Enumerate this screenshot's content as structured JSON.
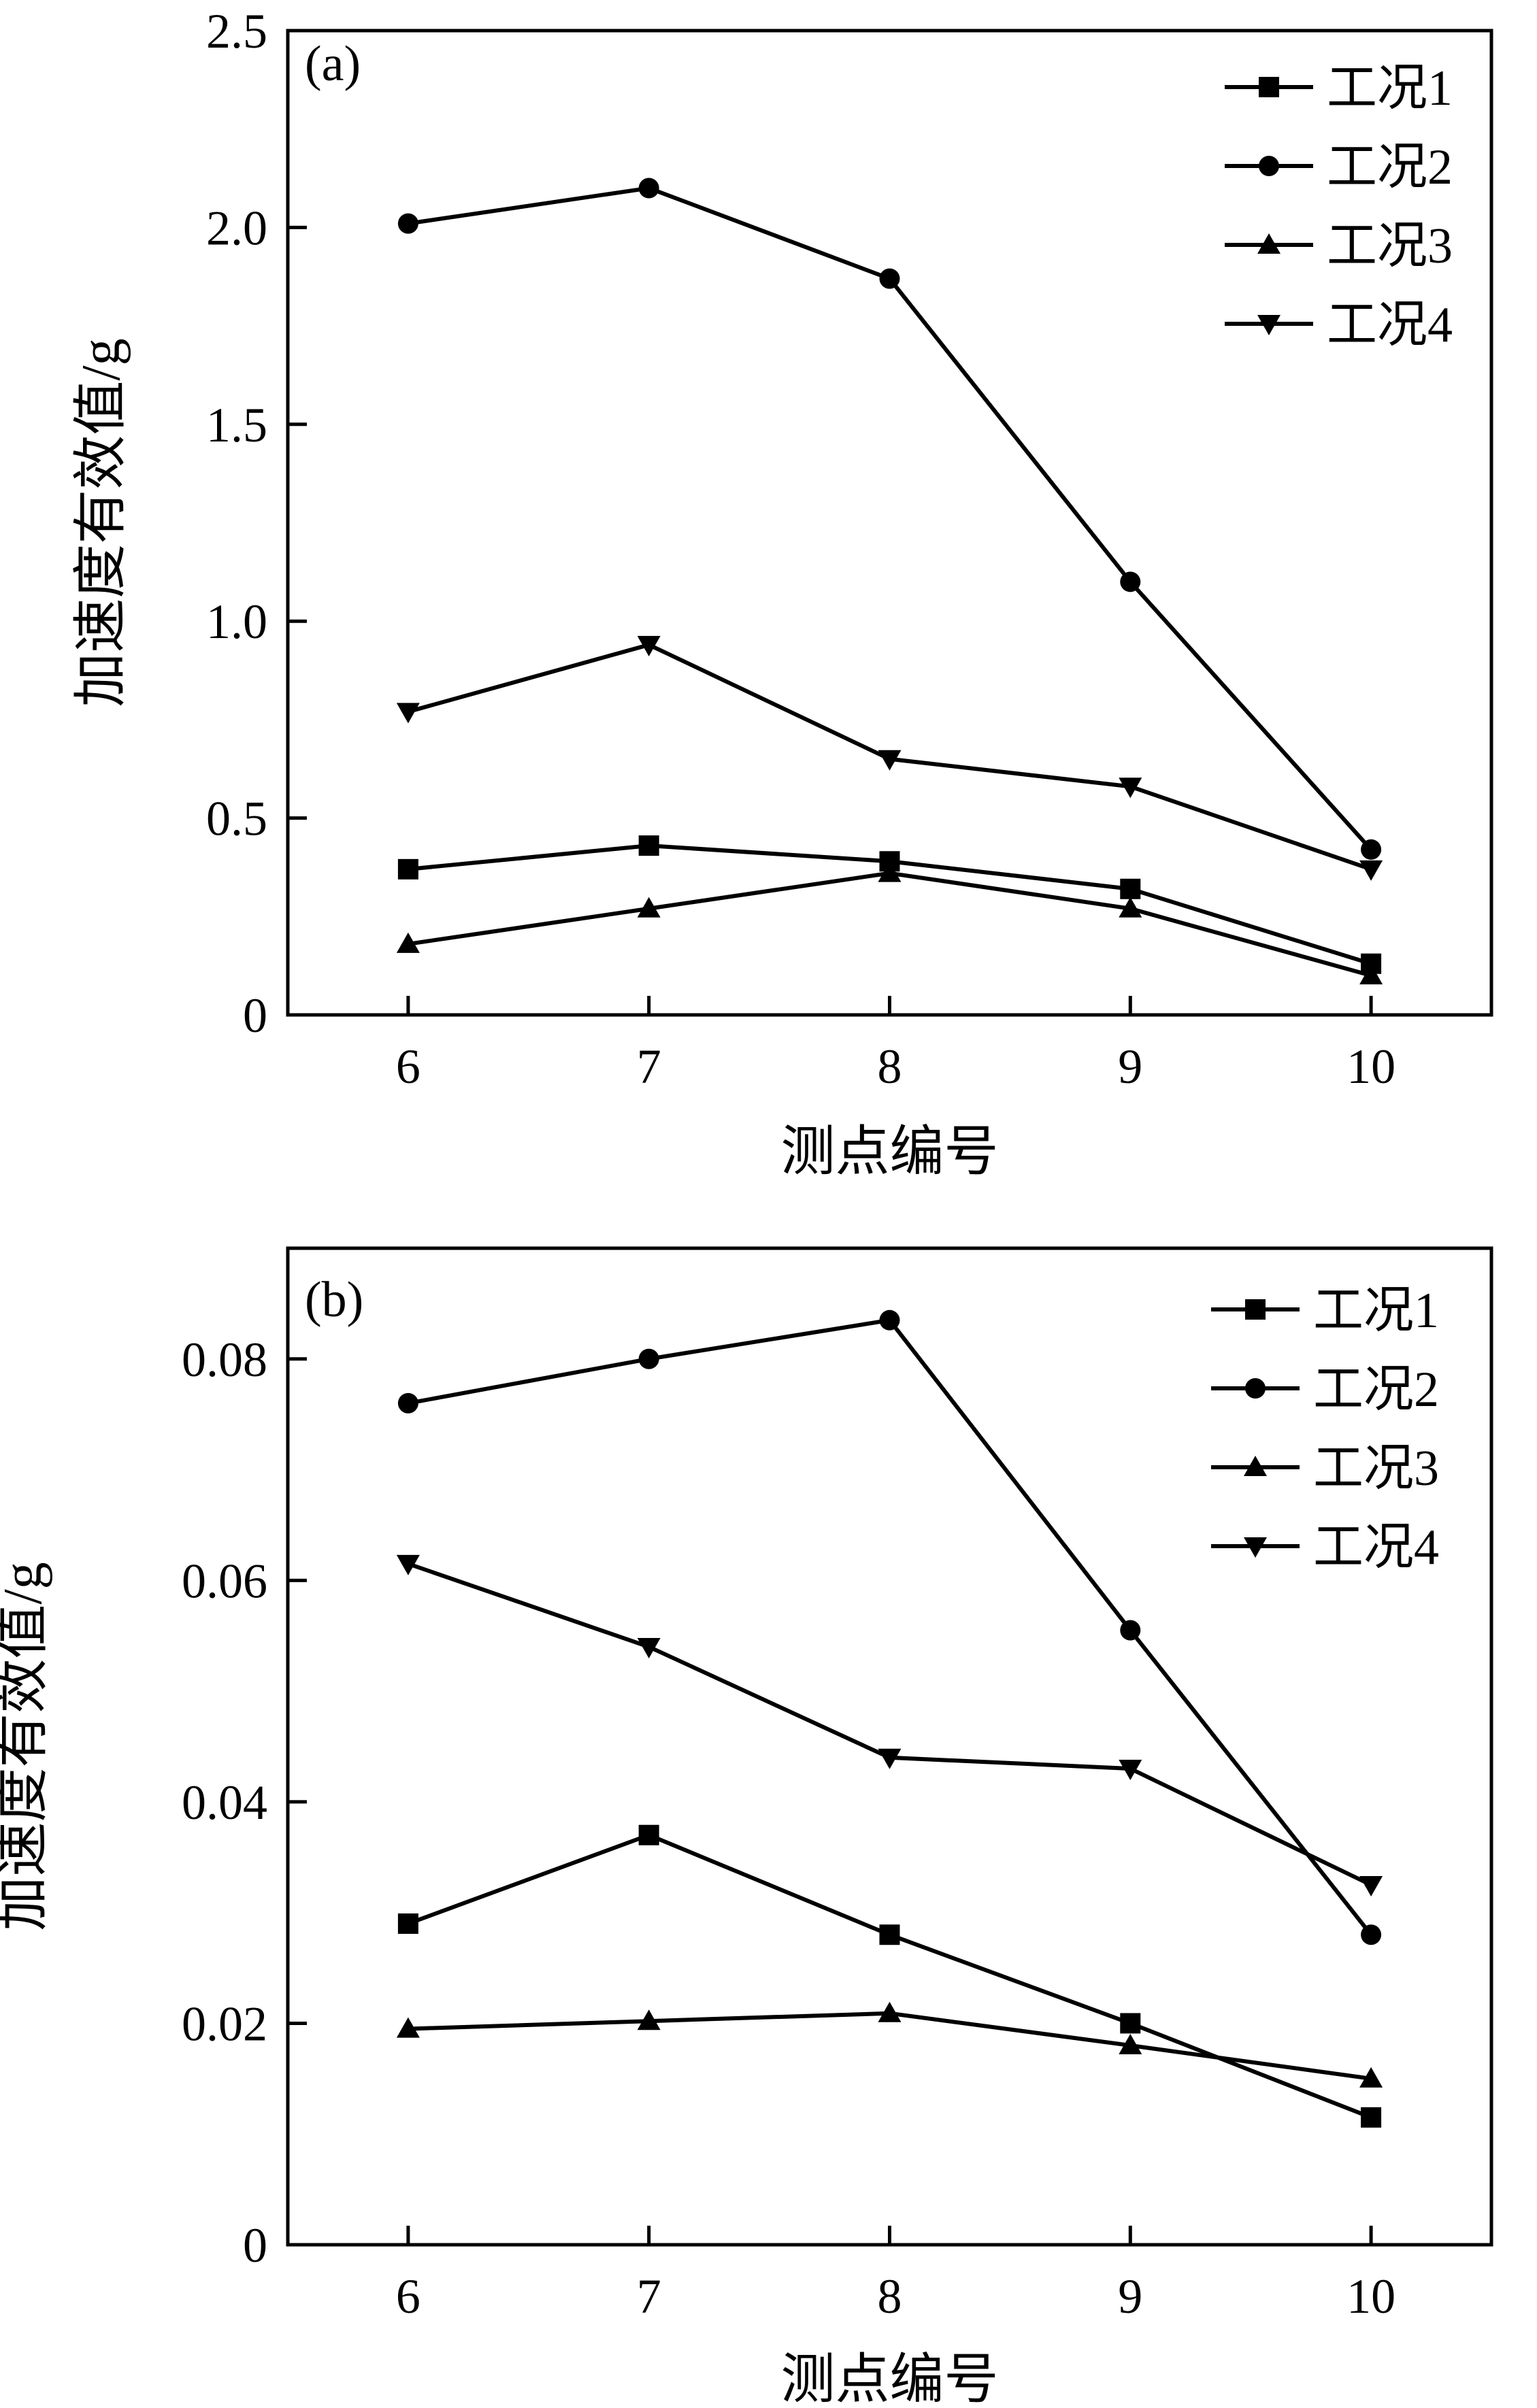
{
  "chart_data": [
    {
      "type": "line",
      "panel_label": "(a)",
      "xlabel": "测点编号",
      "ylabel": "加速度有效值/g",
      "categories": [
        "6",
        "7",
        "8",
        "9",
        "10"
      ],
      "x": [
        6,
        7,
        8,
        9,
        10
      ],
      "xlim": [
        5.5,
        10.5
      ],
      "ylim": [
        0,
        2.5
      ],
      "yticks": [
        0,
        0.5,
        1.0,
        1.5,
        2.0,
        2.5
      ],
      "ytick_labels": [
        "0",
        "0.5",
        "1.0",
        "1.5",
        "2.0",
        "2.5"
      ],
      "grid": false,
      "legend_position": "top-right",
      "series": [
        {
          "name": "工况1",
          "marker": "square",
          "values": [
            0.37,
            0.43,
            0.39,
            0.32,
            0.13
          ]
        },
        {
          "name": "工况2",
          "marker": "circle",
          "values": [
            2.01,
            2.1,
            1.87,
            1.1,
            0.42
          ]
        },
        {
          "name": "工况3",
          "marker": "triangle-up",
          "values": [
            0.18,
            0.27,
            0.36,
            0.27,
            0.1
          ]
        },
        {
          "name": "工况4",
          "marker": "triangle-down",
          "values": [
            0.77,
            0.94,
            0.65,
            0.58,
            0.37
          ]
        }
      ]
    },
    {
      "type": "line",
      "panel_label": "(b)",
      "xlabel": "测点编号",
      "ylabel": "加速度有效值/g",
      "categories": [
        "6",
        "7",
        "8",
        "9",
        "10"
      ],
      "x": [
        6,
        7,
        8,
        9,
        10
      ],
      "xlim": [
        5.5,
        10.5
      ],
      "ylim": [
        0,
        0.09
      ],
      "yticks": [
        0,
        0.02,
        0.04,
        0.06,
        0.08
      ],
      "ytick_labels": [
        "0",
        "0.02",
        "0.04",
        "0.06",
        "0.08"
      ],
      "grid": false,
      "legend_position": "top-right",
      "series": [
        {
          "name": "工况1",
          "marker": "square",
          "values": [
            0.029,
            0.037,
            0.028,
            0.02,
            0.0115
          ]
        },
        {
          "name": "工况2",
          "marker": "circle",
          "values": [
            0.076,
            0.08,
            0.0835,
            0.0555,
            0.028
          ]
        },
        {
          "name": "工况3",
          "marker": "triangle-up",
          "values": [
            0.0195,
            0.0202,
            0.0209,
            0.018,
            0.015
          ]
        },
        {
          "name": "工况4",
          "marker": "triangle-down",
          "values": [
            0.0615,
            0.054,
            0.044,
            0.043,
            0.0325
          ]
        }
      ]
    }
  ]
}
